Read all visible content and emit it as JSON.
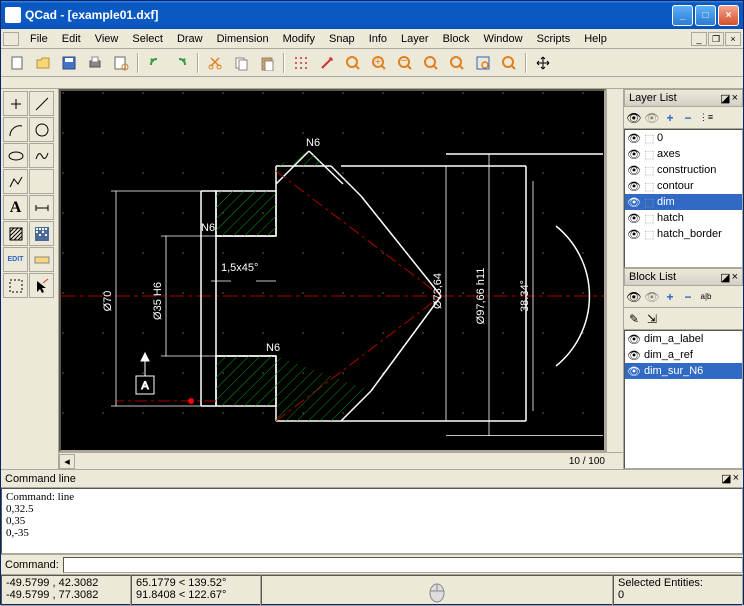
{
  "window": {
    "title": "QCad - [example01.dxf]"
  },
  "menu": [
    "File",
    "Edit",
    "View",
    "Select",
    "Draw",
    "Dimension",
    "Modify",
    "Snap",
    "Info",
    "Layer",
    "Block",
    "Window",
    "Scripts",
    "Help"
  ],
  "canvas": {
    "bg": "#000000",
    "dot_color": "#555555",
    "part_color": "#ffffff",
    "hatch_color": "#008000",
    "axis_color": "#aa0000",
    "highlight_color": "#ff0000",
    "dims": {
      "d1": "Ø70",
      "d2": "Ø35 H6",
      "d3": "Ø73,64",
      "d4": "Ø97,66 h11",
      "d5": "38.34°",
      "cham": "1,5x45°",
      "n6a": "N6",
      "n6b": "N6",
      "n6c": "N6",
      "abox": "A"
    },
    "zoom_info": "10 / 100"
  },
  "layers": {
    "title": "Layer List",
    "items": [
      {
        "name": "0",
        "sel": false
      },
      {
        "name": "axes",
        "sel": false
      },
      {
        "name": "construction",
        "sel": false
      },
      {
        "name": "contour",
        "sel": false
      },
      {
        "name": "dim",
        "sel": true
      },
      {
        "name": "hatch",
        "sel": false
      },
      {
        "name": "hatch_border",
        "sel": false
      }
    ]
  },
  "blocks": {
    "title": "Block List",
    "items": [
      {
        "name": "dim_a_label",
        "sel": false
      },
      {
        "name": "dim_a_ref",
        "sel": false
      },
      {
        "name": "dim_sur_N6",
        "sel": true
      }
    ]
  },
  "cmd": {
    "title": "Command line",
    "output": "Command: line\n0,32.5\n0,35\n0,-35",
    "label": "Command:"
  },
  "status": {
    "coords1": "-49.5799 , 42.3082",
    "coords2": "-49.5799 , 77.3082",
    "polar1": "65.1779 < 139.52°",
    "polar2": "91.8408 < 122.67°",
    "sel_label": "Selected Entities:",
    "sel_count": "0"
  },
  "buttons": {
    "plus": "+",
    "minus": "−",
    "ab": "a|b",
    "edit": "EDIT"
  },
  "colors": {
    "blue": "#2a65c4",
    "green": "#3a9d3a",
    "red": "#cc3333",
    "orange": "#e08020"
  }
}
